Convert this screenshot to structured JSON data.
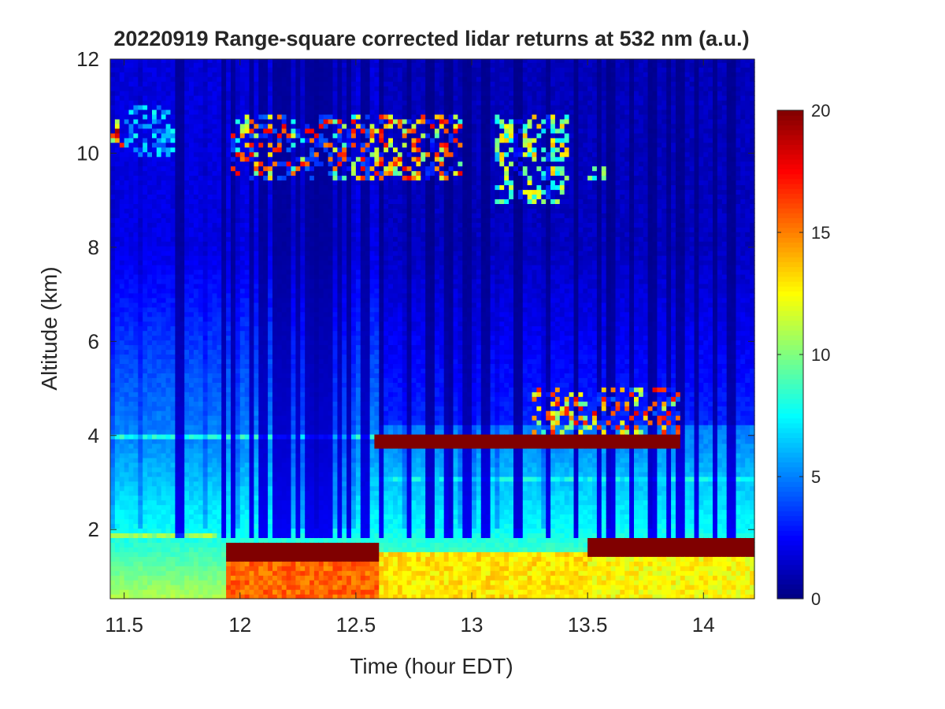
{
  "chart_data": {
    "type": "heatmap",
    "title": "20220919  Range-square corrected lidar returns at 532 nm (a.u.)",
    "xlabel": "Time (hour EDT)",
    "ylabel": "Altitude (km)",
    "xlim": [
      11.44,
      14.22
    ],
    "ylim": [
      0.53,
      12
    ],
    "xticks": [
      11.5,
      12,
      12.5,
      13,
      13.5,
      14
    ],
    "xtick_labels": [
      "11.5",
      "12",
      "12.5",
      "13",
      "13.5",
      "14"
    ],
    "yticks": [
      2,
      4,
      6,
      8,
      10,
      12
    ],
    "ytick_labels": [
      "2",
      "4",
      "6",
      "8",
      "10",
      "12"
    ],
    "colormap": "jet",
    "clim": [
      0,
      20
    ],
    "colorbar": {
      "ticks": [
        0,
        5,
        10,
        15,
        20
      ],
      "tick_labels": [
        "0",
        "5",
        "10",
        "15",
        "20"
      ],
      "placement": "right"
    },
    "grid_resolution": {
      "dt_hour": 0.02,
      "dz_km": 0.1
    },
    "background_profile": {
      "surface_value": 11,
      "value_2km": 7.6,
      "value_4km": 5.1,
      "value_8km": 2.0,
      "value_12km": 1.8
    },
    "low_signal_stripes_hour": [
      11.74,
      11.93,
      11.97,
      12.05,
      12.1,
      12.16,
      12.2,
      12.25,
      12.3,
      12.34,
      12.38,
      12.43,
      12.47,
      12.54,
      12.61,
      12.73,
      12.82,
      12.9,
      12.98,
      13.06,
      13.2,
      13.33,
      13.45,
      13.55,
      13.6,
      13.69,
      13.78,
      13.85,
      13.9,
      13.97,
      14.05,
      14.12
    ],
    "features": [
      {
        "name": "residual layer",
        "t": [
          11.44,
          11.9
        ],
        "z": [
          1.85,
          1.95
        ],
        "value": 10.5
      },
      {
        "name": "elevated aerosol layer",
        "t": [
          11.44,
          12.6
        ],
        "z": [
          3.95,
          4.05
        ],
        "value": 8
      },
      {
        "name": "aerosol layer",
        "t": [
          12.6,
          14.22
        ],
        "z": [
          3.0,
          3.1
        ],
        "value": 7.5
      },
      {
        "name": "boundary layer top",
        "t": [
          11.93,
          12.6
        ],
        "z": [
          1.35,
          1.75
        ],
        "value": 20
      },
      {
        "name": "boundary layer",
        "t": [
          11.93,
          12.6
        ],
        "z": [
          0.53,
          1.35
        ],
        "value": 15.5
      },
      {
        "name": "boundary layer",
        "t": [
          12.6,
          13.5
        ],
        "z": [
          0.53,
          1.55
        ],
        "value": 13
      },
      {
        "name": "boundary layer top",
        "t": [
          13.5,
          14.22
        ],
        "z": [
          1.45,
          1.8
        ],
        "value": 20
      },
      {
        "name": "boundary layer",
        "t": [
          13.5,
          14.22
        ],
        "z": [
          0.53,
          1.45
        ],
        "value": 12.5
      },
      {
        "name": "cloud layer",
        "t": [
          12.58,
          13.9
        ],
        "z": [
          3.78,
          4.0
        ],
        "value": 20
      },
      {
        "name": "broken cumulus",
        "t": [
          13.25,
          13.9
        ],
        "z": [
          4.0,
          5.0
        ],
        "value": 18
      },
      {
        "name": "cirrus",
        "t": [
          11.95,
          12.95
        ],
        "z": [
          9.4,
          10.8
        ],
        "value": 18
      },
      {
        "name": "cirrus",
        "t": [
          11.44,
          11.5
        ],
        "z": [
          10.1,
          10.7
        ],
        "value": 20
      },
      {
        "name": "cirrus",
        "t": [
          11.5,
          11.72
        ],
        "z": [
          9.9,
          11.0
        ],
        "value": 8
      },
      {
        "name": "cirrus",
        "t": [
          13.1,
          13.42
        ],
        "z": [
          8.9,
          10.8
        ],
        "value": 14
      },
      {
        "name": "cirrus",
        "t": [
          13.5,
          13.57
        ],
        "z": [
          9.4,
          9.7
        ],
        "value": 14
      }
    ]
  }
}
